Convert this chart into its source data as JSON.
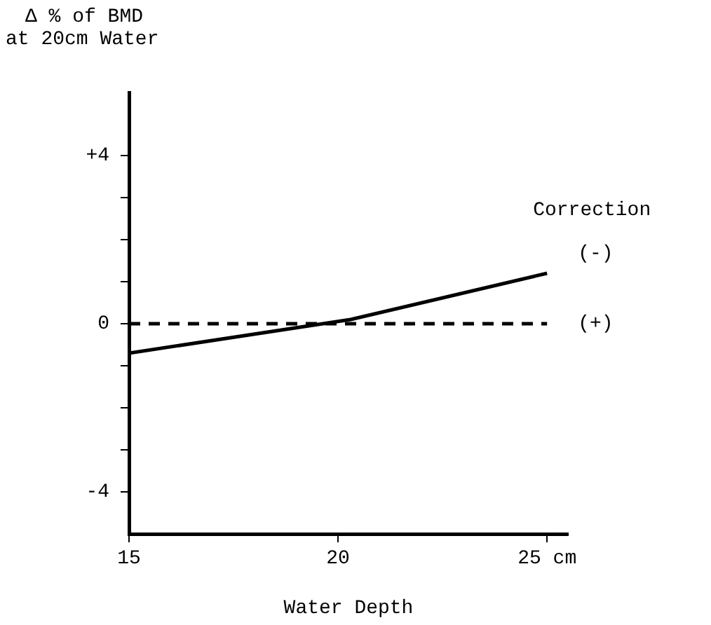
{
  "chart_data": {
    "type": "line",
    "ylabel": "Δ % of BMD\nat 20cm Water",
    "xlabel": "Water Depth",
    "legend_title": "Correction",
    "xlim": [
      15,
      25.5
    ],
    "xticks": [
      15,
      20,
      {
        "value": 25,
        "label": "25 cm"
      }
    ],
    "ylim": [
      -5,
      5.5
    ],
    "yticks": [
      {
        "value": -4,
        "label": "-4"
      },
      {
        "value": -3,
        "label": null
      },
      {
        "value": -2,
        "label": null
      },
      {
        "value": -1,
        "label": null
      },
      0,
      {
        "value": 1,
        "label": null
      },
      {
        "value": 2,
        "label": null
      },
      {
        "value": 3,
        "label": null
      },
      {
        "value": 4,
        "label": "+4"
      }
    ],
    "grid": false,
    "marker": "none",
    "series": [
      {
        "name": "(-)",
        "color": "#000000",
        "line_style": "solid",
        "x": [
          15,
          20.3,
          25
        ],
        "values": [
          -0.7,
          0.1,
          1.2
        ]
      },
      {
        "name": "(+)",
        "color": "#000000",
        "line_style": "dashed",
        "x": [
          15,
          25
        ],
        "values": [
          0,
          0
        ]
      }
    ]
  }
}
